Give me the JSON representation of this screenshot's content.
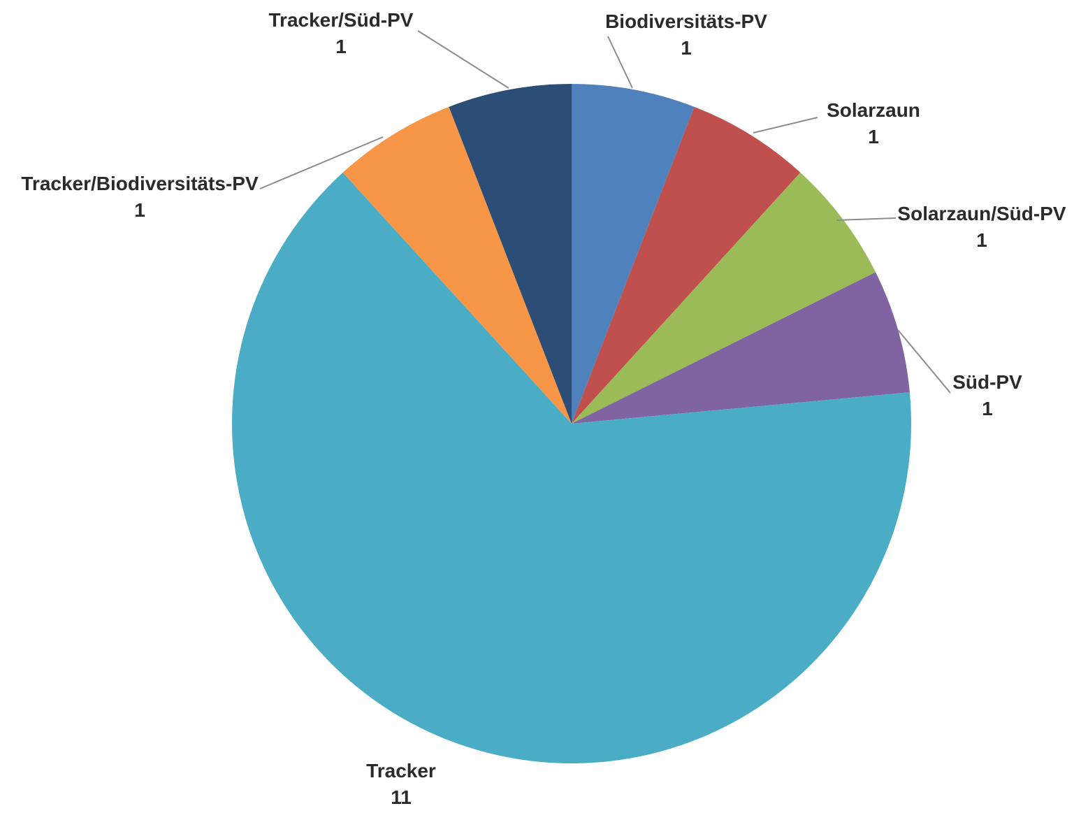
{
  "chart_data": {
    "type": "pie",
    "title": "",
    "start_angle_deg": 0,
    "direction": "clockwise",
    "slices": [
      {
        "label": "Biodiversitäts-PV",
        "value": 1,
        "color": "#4f81bd"
      },
      {
        "label": "Solarzaun",
        "value": 1,
        "color": "#c0504d"
      },
      {
        "label": "Solarzaun/Süd-PV",
        "value": 1,
        "color": "#9bbb59"
      },
      {
        "label": "Süd-PV",
        "value": 1,
        "color": "#8064a2"
      },
      {
        "label": "Tracker",
        "value": 11,
        "color": "#4bacc6"
      },
      {
        "label": "Tracker/Biodiversitäts-PV",
        "value": 1,
        "color": "#f79646"
      },
      {
        "label": "Tracker/Süd-PV",
        "value": 1,
        "color": "#2c4d75"
      }
    ],
    "data_labels": "category-and-value",
    "legend": "none"
  }
}
